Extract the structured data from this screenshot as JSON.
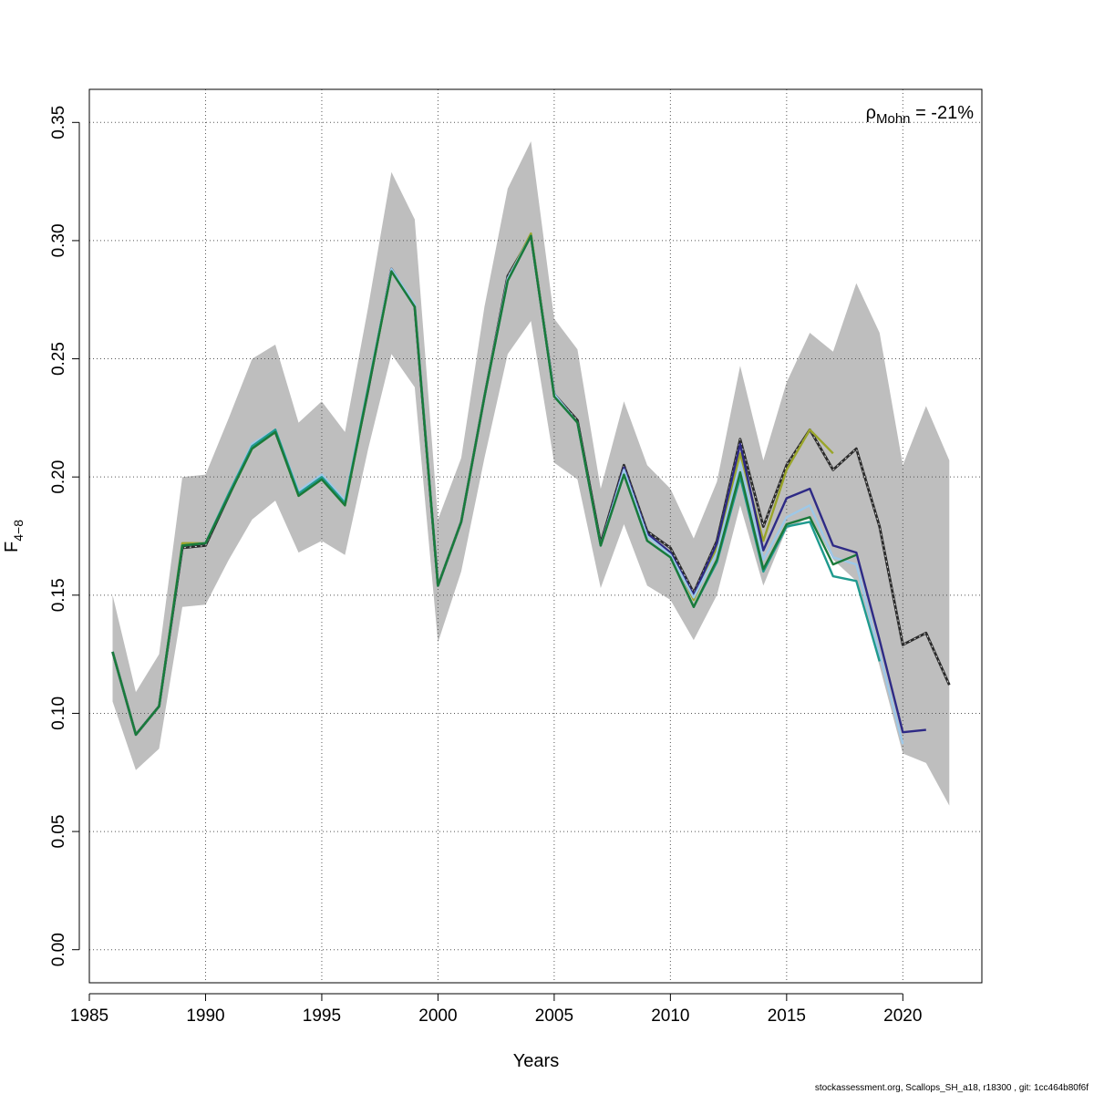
{
  "chart_data": {
    "type": "line",
    "xlabel": "Years",
    "ylabel_main": "F",
    "ylabel_sub": "4−8",
    "xlim": [
      1985,
      2023.4
    ],
    "ylim": [
      -0.014,
      0.364
    ],
    "x_ticks": [
      1985,
      1990,
      1995,
      2000,
      2005,
      2010,
      2015,
      2020
    ],
    "y_ticks": [
      0.0,
      0.05,
      0.1,
      0.15,
      0.2,
      0.25,
      0.3,
      0.35
    ],
    "y_tick_labels": [
      "0.00",
      "0.05",
      "0.10",
      "0.15",
      "0.20",
      "0.25",
      "0.30",
      "0.35"
    ],
    "grid": true,
    "annotation": {
      "rho": "ρ",
      "sub": "Mohn",
      "text": " = -21%"
    },
    "footer": "stockassessment.org, Scallops_SH_a18, r18300 , git: 1cc464b80f6f",
    "confidence_band": {
      "x": [
        1986,
        1987,
        1988,
        1989,
        1990,
        1991,
        1992,
        1993,
        1994,
        1995,
        1996,
        1997,
        1998,
        1999,
        2000,
        2001,
        2002,
        2003,
        2004,
        2005,
        2006,
        2007,
        2008,
        2009,
        2010,
        2011,
        2012,
        2013,
        2014,
        2015,
        2016,
        2017,
        2018,
        2019,
        2020,
        2021,
        2022
      ],
      "upper": [
        0.15,
        0.109,
        0.125,
        0.2,
        0.201,
        0.225,
        0.25,
        0.256,
        0.223,
        0.232,
        0.219,
        0.272,
        0.329,
        0.309,
        0.182,
        0.208,
        0.272,
        0.322,
        0.342,
        0.267,
        0.254,
        0.195,
        0.232,
        0.205,
        0.195,
        0.174,
        0.198,
        0.247,
        0.207,
        0.24,
        0.261,
        0.253,
        0.282,
        0.261,
        0.205,
        0.23,
        0.207
      ],
      "lower": [
        0.105,
        0.076,
        0.085,
        0.145,
        0.146,
        0.165,
        0.182,
        0.19,
        0.168,
        0.173,
        0.167,
        0.212,
        0.252,
        0.238,
        0.13,
        0.16,
        0.208,
        0.252,
        0.266,
        0.206,
        0.199,
        0.153,
        0.18,
        0.154,
        0.148,
        0.131,
        0.15,
        0.188,
        0.154,
        0.178,
        0.183,
        0.165,
        0.156,
        0.12,
        0.083,
        0.079,
        0.061
      ],
      "color": "#bebebe"
    },
    "series": [
      {
        "color": "#2a2a2a",
        "dashed": true,
        "width": 2.4,
        "x": [
          1986,
          1987,
          1988,
          1989,
          1990,
          1991,
          1992,
          1993,
          1994,
          1995,
          1996,
          1997,
          1998,
          1999,
          2000,
          2001,
          2002,
          2003,
          2004,
          2005,
          2006,
          2007,
          2008,
          2009,
          2010,
          2011,
          2012,
          2013,
          2014,
          2015,
          2016,
          2017,
          2018,
          2019,
          2020,
          2021,
          2022
        ],
        "values": [
          0.126,
          0.091,
          0.103,
          0.17,
          0.171,
          0.192,
          0.213,
          0.219,
          0.193,
          0.2,
          0.189,
          0.237,
          0.288,
          0.272,
          0.154,
          0.181,
          0.234,
          0.285,
          0.302,
          0.235,
          0.224,
          0.172,
          0.205,
          0.177,
          0.17,
          0.151,
          0.173,
          0.216,
          0.179,
          0.205,
          0.22,
          0.203,
          0.212,
          0.179,
          0.129,
          0.134,
          0.112
        ]
      },
      {
        "color": "#9aa52a",
        "width": 2.4,
        "x": [
          1986,
          1987,
          1988,
          1989,
          1990,
          1991,
          1992,
          1993,
          1994,
          1995,
          1996,
          1997,
          1998,
          1999,
          2000,
          2001,
          2002,
          2003,
          2004,
          2005,
          2006,
          2007,
          2008,
          2009,
          2010,
          2011,
          2012,
          2013,
          2014,
          2015,
          2016,
          2017
        ],
        "values": [
          0.126,
          0.091,
          0.103,
          0.172,
          0.172,
          0.192,
          0.212,
          0.219,
          0.192,
          0.199,
          0.188,
          0.237,
          0.287,
          0.272,
          0.154,
          0.181,
          0.234,
          0.284,
          0.303,
          0.235,
          0.223,
          0.171,
          0.202,
          0.175,
          0.168,
          0.148,
          0.17,
          0.21,
          0.173,
          0.203,
          0.22,
          0.21
        ]
      },
      {
        "color": "#2e2a86",
        "width": 2.4,
        "x": [
          1986,
          1987,
          1988,
          1989,
          1990,
          1991,
          1992,
          1993,
          1994,
          1995,
          1996,
          1997,
          1998,
          1999,
          2000,
          2001,
          2002,
          2003,
          2004,
          2005,
          2006,
          2007,
          2008,
          2009,
          2010,
          2011,
          2012,
          2013,
          2014,
          2015,
          2016,
          2017,
          2018,
          2019,
          2020,
          2021
        ],
        "values": [
          0.126,
          0.091,
          0.103,
          0.171,
          0.172,
          0.192,
          0.213,
          0.219,
          0.193,
          0.2,
          0.189,
          0.237,
          0.288,
          0.272,
          0.154,
          0.181,
          0.234,
          0.284,
          0.302,
          0.235,
          0.223,
          0.171,
          0.204,
          0.176,
          0.168,
          0.15,
          0.172,
          0.214,
          0.169,
          0.191,
          0.195,
          0.171,
          0.168,
          0.131,
          0.092,
          0.093
        ]
      },
      {
        "color": "#9dc8e8",
        "width": 2.4,
        "x": [
          1986,
          1987,
          1988,
          1989,
          1990,
          1991,
          1992,
          1993,
          1994,
          1995,
          1996,
          1997,
          1998,
          1999,
          2000,
          2001,
          2002,
          2003,
          2004,
          2005,
          2006,
          2007,
          2008,
          2009,
          2010,
          2011,
          2012,
          2013,
          2014,
          2015,
          2016,
          2017,
          2018,
          2019,
          2020
        ],
        "values": [
          0.126,
          0.091,
          0.103,
          0.171,
          0.172,
          0.193,
          0.214,
          0.22,
          0.194,
          0.201,
          0.19,
          0.238,
          0.288,
          0.273,
          0.154,
          0.181,
          0.234,
          0.284,
          0.302,
          0.235,
          0.223,
          0.171,
          0.203,
          0.175,
          0.167,
          0.149,
          0.168,
          0.206,
          0.165,
          0.183,
          0.188,
          0.166,
          0.163,
          0.125,
          0.087
        ]
      },
      {
        "color": "#1f9a8e",
        "width": 2.4,
        "x": [
          1986,
          1987,
          1988,
          1989,
          1990,
          1991,
          1992,
          1993,
          1994,
          1995,
          1996,
          1997,
          1998,
          1999,
          2000,
          2001,
          2002,
          2003,
          2004,
          2005,
          2006,
          2007,
          2008,
          2009,
          2010,
          2011,
          2012,
          2013,
          2014,
          2015,
          2016,
          2017,
          2018,
          2019
        ],
        "values": [
          0.126,
          0.091,
          0.103,
          0.171,
          0.172,
          0.193,
          0.213,
          0.22,
          0.193,
          0.2,
          0.189,
          0.238,
          0.287,
          0.272,
          0.154,
          0.181,
          0.234,
          0.283,
          0.302,
          0.234,
          0.223,
          0.171,
          0.201,
          0.173,
          0.166,
          0.145,
          0.164,
          0.2,
          0.16,
          0.179,
          0.181,
          0.158,
          0.156,
          0.122
        ]
      },
      {
        "color": "#1a7a3a",
        "width": 2.4,
        "x": [
          1986,
          1987,
          1988,
          1989,
          1990,
          1991,
          1992,
          1993,
          1994,
          1995,
          1996,
          1997,
          1998,
          1999,
          2000,
          2001,
          2002,
          2003,
          2004,
          2005,
          2006,
          2007,
          2008,
          2009,
          2010,
          2011,
          2012,
          2013,
          2014,
          2015,
          2016,
          2017,
          2018
        ],
        "values": [
          0.126,
          0.091,
          0.103,
          0.171,
          0.172,
          0.192,
          0.212,
          0.219,
          0.192,
          0.199,
          0.188,
          0.237,
          0.287,
          0.272,
          0.154,
          0.181,
          0.234,
          0.283,
          0.302,
          0.234,
          0.223,
          0.171,
          0.201,
          0.173,
          0.166,
          0.145,
          0.165,
          0.202,
          0.161,
          0.18,
          0.183,
          0.163,
          0.167
        ]
      }
    ]
  }
}
